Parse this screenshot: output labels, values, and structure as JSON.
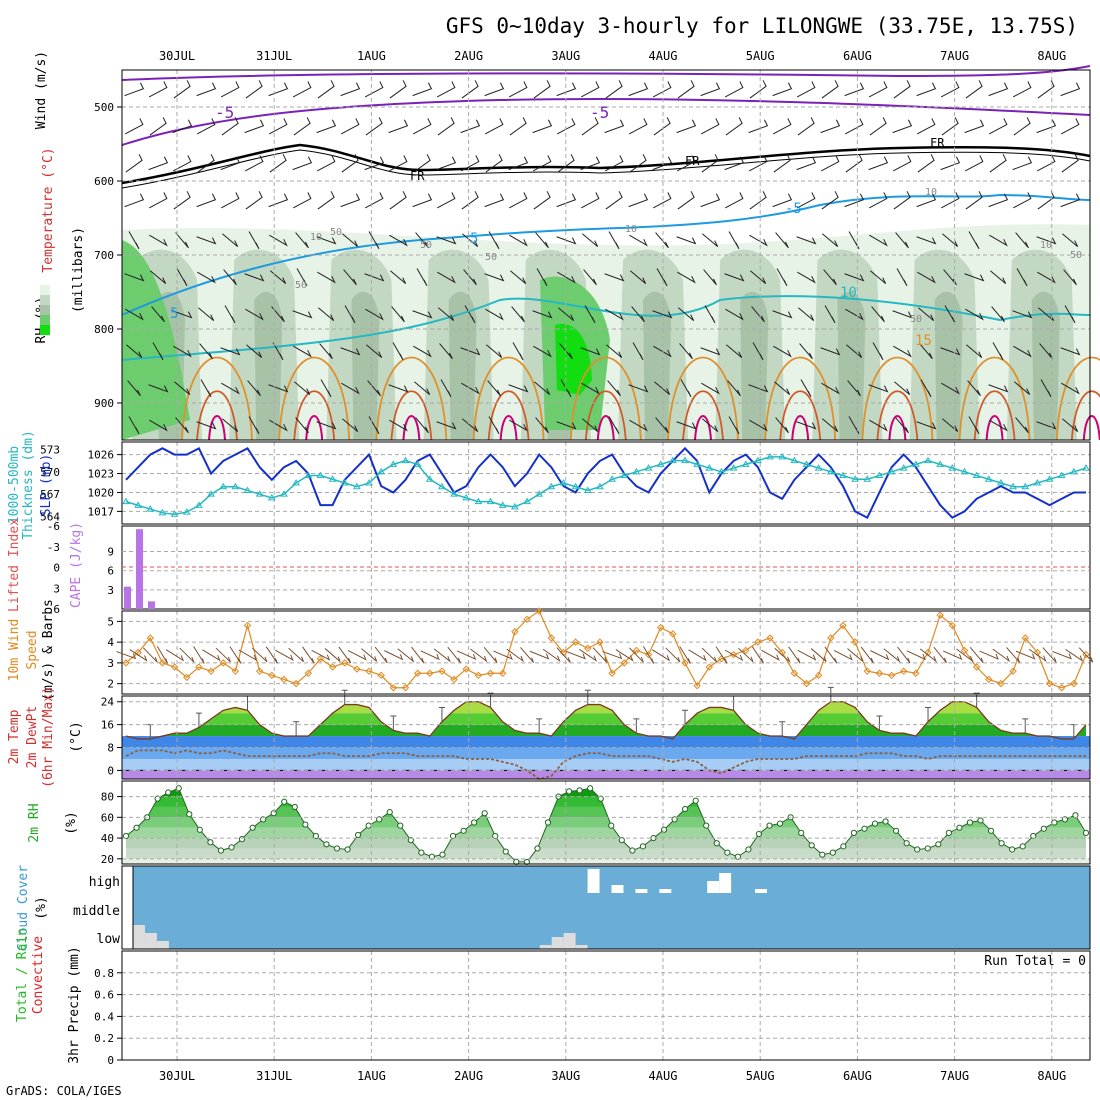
{
  "header": {
    "title": "GFS 0~10day 3-hourly for LILONGWE (33.75E, 13.75S)",
    "footer": "GrADS: COLA/IGES"
  },
  "colors": {
    "temperature": "#7a22b8",
    "freezing": "#000000",
    "humidity_line": "#1e9be0",
    "slp": "#1530c8",
    "thickness": "#25b8c2",
    "cape": "#b873e6",
    "wind": "#e08a20",
    "cloud_bg": "#6aadd6",
    "precip_total": "#22bb22",
    "precip_conv": "#e02020"
  },
  "chart_data": [
    {
      "id": "upper_air",
      "type": "heatmap",
      "ylabel_parts": [
        "Wind (m/s)",
        "Temperature (°C)",
        "RH (%)",
        "(millibars)"
      ],
      "yticks": [
        500,
        600,
        700,
        800,
        900
      ],
      "ylim": [
        450,
        950
      ],
      "dates": [
        "30JUL",
        "31JUL",
        "1AUG",
        "2AUG",
        "3AUG",
        "4AUG",
        "5AUG",
        "6AUG",
        "7AUG",
        "8AUG"
      ],
      "labels": [
        "-5",
        "-5",
        "FR",
        "FR",
        "FR",
        "5",
        "5",
        "-5",
        "10",
        "15",
        "10",
        "50",
        "50",
        "50",
        "10",
        "50",
        "10",
        "50",
        "10",
        "50"
      ]
    },
    {
      "id": "slp_thickness",
      "type": "line",
      "ylabel_left": "1000-500mb Thickness (dm)",
      "ylabel_right": "SLP (mb)",
      "left_ticks": [
        564,
        567,
        570,
        573
      ],
      "right_ticks": [
        1017,
        1020,
        1023,
        1026
      ],
      "series": [
        {
          "name": "SLP (mb)",
          "values": [
            1022,
            1024,
            1026,
            1027,
            1026,
            1026,
            1027,
            1023,
            1025,
            1026,
            1027,
            1024,
            1022,
            1024,
            1025,
            1023,
            1018,
            1018,
            1022,
            1024,
            1026,
            1021,
            1020,
            1022,
            1025,
            1026,
            1023,
            1020,
            1021,
            1024,
            1026,
            1024,
            1021,
            1023,
            1026,
            1024,
            1021,
            1020,
            1023,
            1025,
            1026,
            1023,
            1021,
            1020,
            1023,
            1025,
            1027,
            1025,
            1020,
            1023,
            1025,
            1026,
            1024,
            1020,
            1019,
            1022,
            1024,
            1026,
            1024,
            1021,
            1017,
            1016,
            1020,
            1024,
            1026,
            1024,
            1021,
            1018,
            1016,
            1017,
            1019,
            1020,
            1021,
            1020,
            1020,
            1019,
            1018,
            1019,
            1020,
            1020
          ]
        },
        {
          "name": "1000-500mb Thickness (dm)",
          "values": [
            566,
            565.5,
            565,
            564.5,
            564.3,
            564.6,
            565.5,
            567,
            568,
            568,
            567.5,
            567,
            566.5,
            567,
            568.5,
            569.5,
            569.5,
            569,
            568.5,
            568,
            568.5,
            570,
            571,
            571.5,
            571,
            569,
            568,
            567,
            566.5,
            566,
            566,
            565.5,
            565.3,
            566,
            567,
            568,
            568.5,
            568,
            567.5,
            568,
            569,
            569.5,
            570,
            570.5,
            571,
            571.5,
            571.5,
            571,
            570.5,
            570,
            570.5,
            571,
            571.5,
            572,
            572,
            571.5,
            571,
            570.5,
            570,
            569.5,
            569,
            569,
            569.5,
            570,
            570.5,
            571,
            571.5,
            571,
            570.5,
            570,
            569.5,
            569,
            568.5,
            568,
            568,
            568.5,
            569,
            569.5,
            570,
            570.5
          ]
        }
      ]
    },
    {
      "id": "cape_li",
      "type": "bar",
      "ylabel_left": "Lifted Index",
      "ylabel_right": "CAPE (J/kg)",
      "left_ticks": [
        "6",
        "3",
        "0",
        "-3",
        "-6"
      ],
      "right_ticks": [
        3,
        6,
        9
      ],
      "values": [
        3.5,
        12.5,
        1.2,
        0,
        0,
        0,
        0,
        0,
        0,
        0
      ]
    },
    {
      "id": "wind10m",
      "type": "line",
      "ylabel_parts": [
        "10m Wind",
        "Speed",
        "(m/s) & Barbs"
      ],
      "yticks": [
        2,
        3,
        4,
        5
      ],
      "ylim": [
        1.5,
        5.5
      ],
      "series": [
        {
          "name": "Speed",
          "values": [
            3.0,
            3.5,
            4.2,
            3.0,
            2.8,
            2.3,
            2.8,
            2.6,
            3.0,
            2.6,
            4.8,
            2.6,
            2.4,
            2.2,
            2.0,
            2.5,
            3.2,
            2.8,
            3.0,
            2.7,
            2.6,
            2.4,
            1.8,
            1.8,
            2.5,
            2.5,
            2.6,
            2.2,
            2.7,
            2.4,
            2.5,
            2.5,
            4.5,
            5.1,
            5.5,
            4.2,
            3.5,
            4.0,
            3.7,
            4.0,
            2.5,
            3.0,
            3.6,
            3.4,
            4.7,
            4.4,
            3.0,
            1.9,
            2.8,
            3.2,
            3.4,
            3.6,
            4.0,
            4.2,
            3.5,
            2.5,
            2.0,
            2.4,
            4.2,
            4.8,
            4.0,
            2.6,
            2.5,
            2.4,
            2.6,
            2.5,
            3.5,
            5.3,
            4.8,
            3.6,
            2.8,
            2.2,
            2.0,
            2.6,
            4.2,
            3.5,
            2.0,
            1.8,
            2.0,
            3.4
          ]
        }
      ]
    },
    {
      "id": "temp2m",
      "type": "area",
      "ylabel_parts": [
        "2m Temp",
        "2m DewPt",
        "(6hr Min/Max)",
        "(°C)"
      ],
      "yticks": [
        0,
        8,
        16,
        24
      ],
      "ylim": [
        -3,
        26
      ],
      "series": [
        {
          "name": "2m Temp",
          "values": [
            12,
            11,
            11,
            12,
            13,
            13,
            15,
            18,
            21,
            22,
            21,
            16,
            13,
            12,
            12,
            12,
            16,
            20,
            23,
            23,
            22,
            17,
            14,
            13,
            13,
            12,
            17,
            21,
            24,
            24,
            22,
            17,
            14,
            13,
            13,
            12,
            17,
            21,
            23,
            23,
            21,
            16,
            13,
            12,
            12,
            11,
            16,
            20,
            22,
            22,
            21,
            16,
            13,
            12,
            12,
            11,
            16,
            21,
            24,
            24,
            22,
            17,
            14,
            13,
            13,
            12,
            17,
            21,
            24,
            24,
            22,
            17,
            14,
            13,
            13,
            12,
            12,
            11,
            11,
            16
          ]
        },
        {
          "name": "2m DewPt",
          "values": [
            5,
            7,
            7,
            7,
            6,
            7,
            6,
            6,
            7,
            6,
            5,
            5,
            5,
            5,
            5,
            5,
            6,
            6,
            5,
            5,
            5,
            6,
            6,
            6,
            5,
            5,
            5,
            5,
            4,
            4,
            4,
            3,
            2,
            0,
            -3,
            -2,
            3,
            5,
            6,
            6,
            5,
            5,
            5,
            5,
            4,
            3,
            4,
            3,
            0,
            -1,
            1,
            3,
            4,
            4,
            4,
            4,
            5,
            5,
            5,
            5,
            5,
            6,
            6,
            6,
            5,
            5,
            4,
            5,
            5,
            5,
            5,
            5,
            5,
            5,
            5,
            5,
            5,
            5,
            5,
            5
          ]
        }
      ]
    },
    {
      "id": "rh2m",
      "type": "area",
      "ylabel_parts": [
        "2m RH",
        "(%)"
      ],
      "yticks": [
        20,
        40,
        60,
        80
      ],
      "ylim": [
        15,
        95
      ],
      "series": [
        {
          "name": "2m RH",
          "values": [
            42,
            50,
            60,
            78,
            84,
            88,
            63,
            48,
            36,
            28,
            31,
            39,
            50,
            58,
            64,
            75,
            70,
            53,
            42,
            34,
            30,
            29,
            43,
            52,
            58,
            65,
            52,
            38,
            26,
            22,
            24,
            42,
            47,
            55,
            64,
            42,
            27,
            17,
            17,
            30,
            55,
            80,
            85,
            86,
            88,
            78,
            52,
            38,
            28,
            32,
            40,
            48,
            58,
            68,
            76,
            52,
            35,
            26,
            22,
            29,
            44,
            52,
            54,
            60,
            45,
            33,
            24,
            26,
            32,
            45,
            49,
            54,
            56,
            47,
            35,
            29,
            30,
            34,
            45,
            50,
            55,
            57,
            47,
            35,
            29,
            32,
            42,
            49,
            55,
            58,
            62,
            45
          ]
        }
      ]
    },
    {
      "id": "cloud",
      "type": "heatmap",
      "ylabel_parts": [
        "Cloud Cover",
        "(%)"
      ],
      "levels": [
        "high",
        "middle",
        "low"
      ],
      "low_values": [
        30,
        20,
        10,
        0,
        0,
        0,
        0,
        0,
        0,
        0,
        0,
        0,
        0,
        0,
        0,
        0,
        0,
        0,
        0,
        0,
        0,
        0,
        0,
        0,
        0,
        0,
        0,
        0,
        0,
        0,
        0,
        0,
        0,
        0,
        5,
        15,
        20,
        5,
        0,
        0,
        0,
        0,
        0,
        0,
        0,
        0,
        0,
        0,
        0,
        0,
        0,
        0,
        0,
        0,
        0,
        0,
        0,
        0,
        0,
        0,
        0,
        0,
        0,
        0,
        0,
        0,
        0,
        0,
        0,
        0,
        0,
        0,
        0,
        0,
        0,
        0,
        0,
        0,
        0,
        0
      ],
      "high_values": [
        0,
        0,
        0,
        0,
        0,
        0,
        0,
        0,
        0,
        0,
        0,
        0,
        0,
        0,
        0,
        0,
        0,
        0,
        0,
        0,
        0,
        0,
        0,
        0,
        0,
        0,
        0,
        0,
        0,
        0,
        0,
        0,
        0,
        0,
        0,
        0,
        0,
        0,
        30,
        0,
        10,
        0,
        5,
        0,
        5,
        0,
        0,
        0,
        15,
        25,
        0,
        0,
        5,
        0,
        0,
        0,
        0,
        0,
        0,
        0,
        0,
        0,
        0,
        0,
        0,
        0,
        0,
        0,
        0,
        0,
        0,
        0,
        0,
        0,
        0,
        0,
        0,
        0,
        0,
        0
      ]
    },
    {
      "id": "precip",
      "type": "bar",
      "ylabel_parts": [
        "Total / Rain",
        "Convective",
        "3hr Precip (mm)"
      ],
      "yticks": [
        0,
        0.2,
        0.4,
        0.6,
        0.8
      ],
      "ylim": [
        0,
        1
      ],
      "run_total": "Run Total = 0",
      "values": []
    }
  ]
}
